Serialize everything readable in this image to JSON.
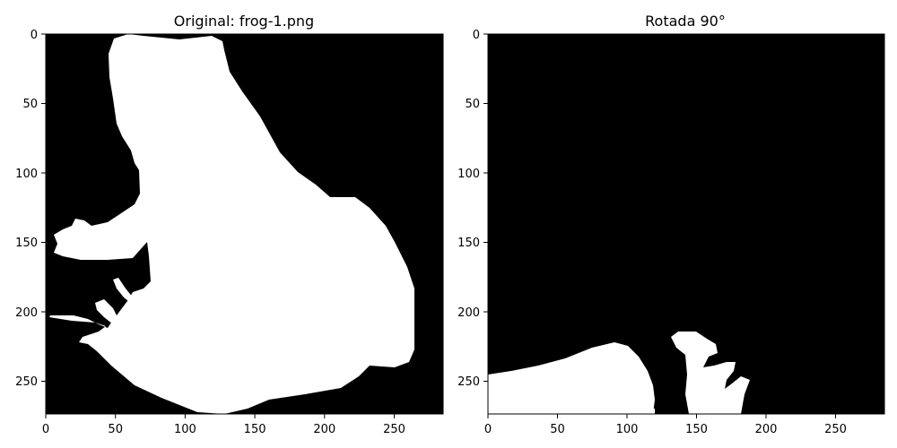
{
  "panels": [
    {
      "title": "Original: frog-1.png",
      "x_ticks": [
        "0",
        "50",
        "100",
        "150",
        "200",
        "250"
      ],
      "y_ticks": [
        "0",
        "50",
        "100",
        "150",
        "200",
        "250"
      ]
    },
    {
      "title": "Rotada 90°",
      "x_ticks": [
        "0",
        "50",
        "100",
        "150",
        "200",
        "250"
      ],
      "y_ticks": [
        "0",
        "50",
        "100",
        "150",
        "200",
        "250"
      ]
    }
  ],
  "colors": {
    "background": "#000000",
    "silhouette": "#ffffff"
  }
}
